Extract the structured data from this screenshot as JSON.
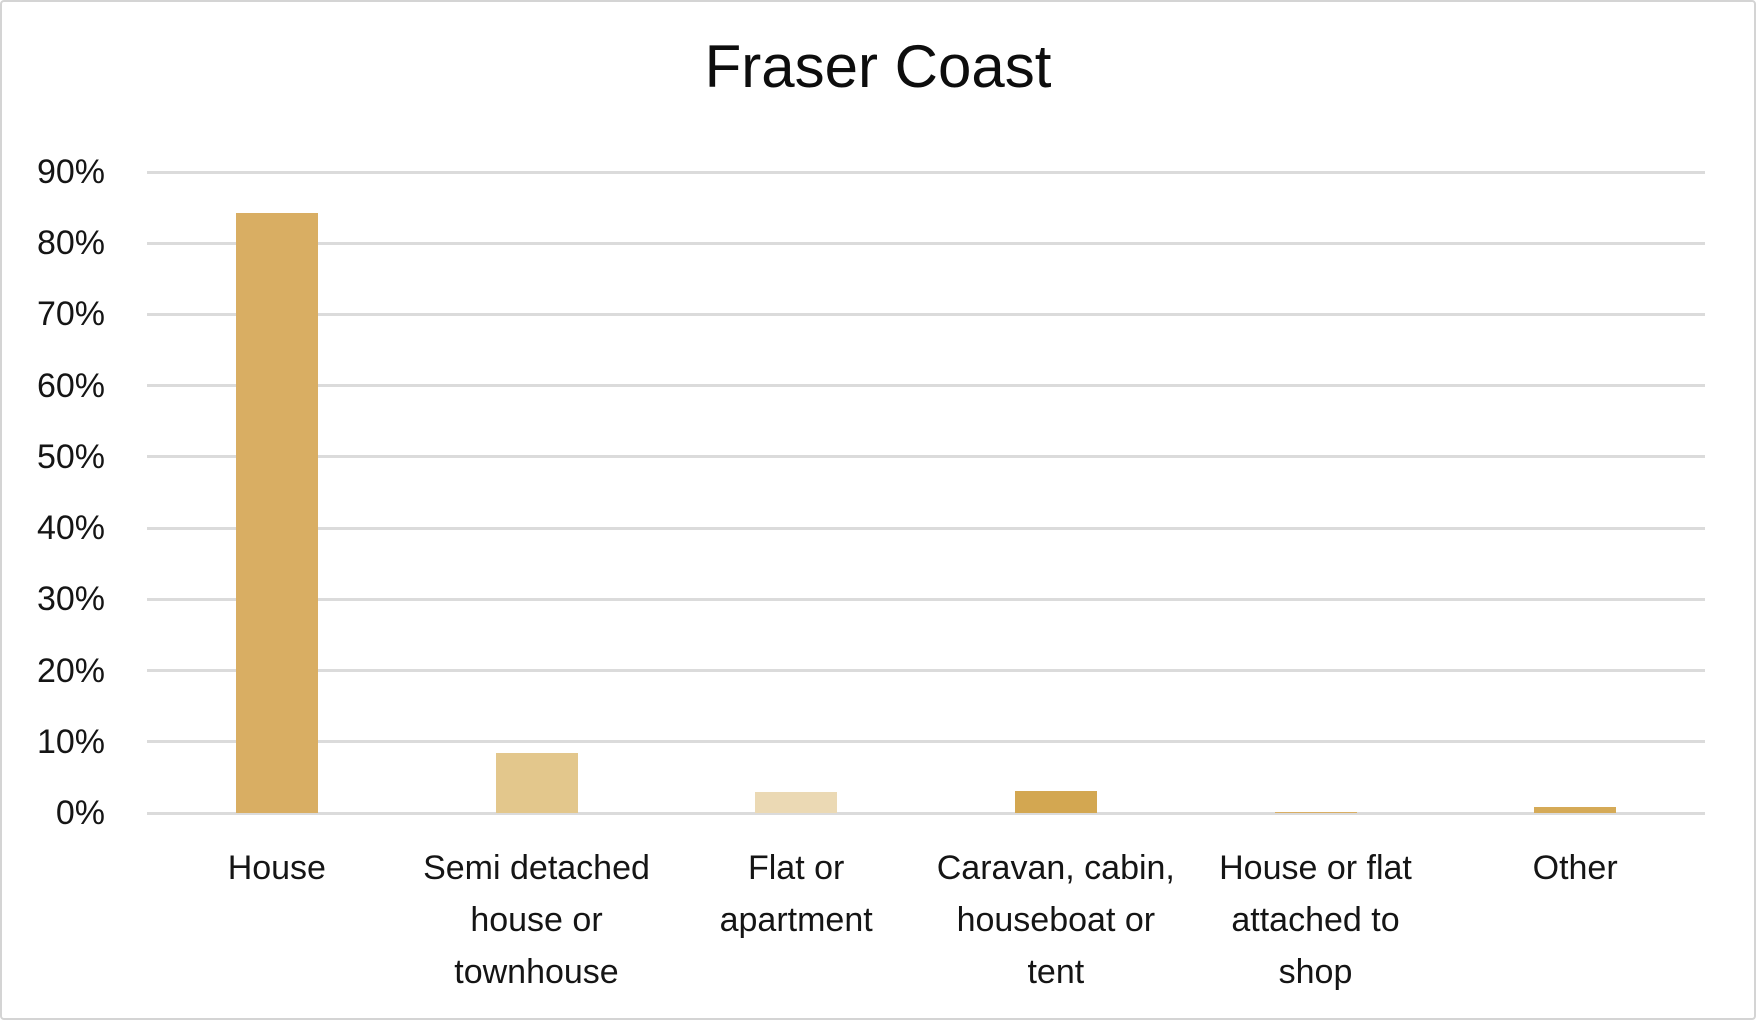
{
  "chart_data": {
    "type": "bar",
    "title": "Fraser Coast",
    "categories": [
      "House",
      "Semi detached house or townhouse",
      "Flat or apartment",
      "Caravan, cabin, houseboat or tent",
      "House or flat attached to shop",
      "Other"
    ],
    "values": [
      84.3,
      8.4,
      2.9,
      3.1,
      0.1,
      0.9
    ],
    "unit": "%",
    "bar_colors": [
      "#D9AE63",
      "#E3C78C",
      "#EBD9B4",
      "#D3A751",
      "#D9AE63",
      "#D5AA57"
    ],
    "ylim": [
      0,
      90
    ],
    "ytick_step": 10,
    "ytick_labels": [
      "0%",
      "10%",
      "20%",
      "30%",
      "40%",
      "50%",
      "60%",
      "70%",
      "80%",
      "90%"
    ],
    "xlabel": "",
    "ylabel": "",
    "grid": true,
    "legend": "none",
    "gridline_color": "#DBDBDB",
    "frame_border_color": "#D4D4D4",
    "background_color": "#FFFFFF",
    "text_color": "#151515"
  }
}
